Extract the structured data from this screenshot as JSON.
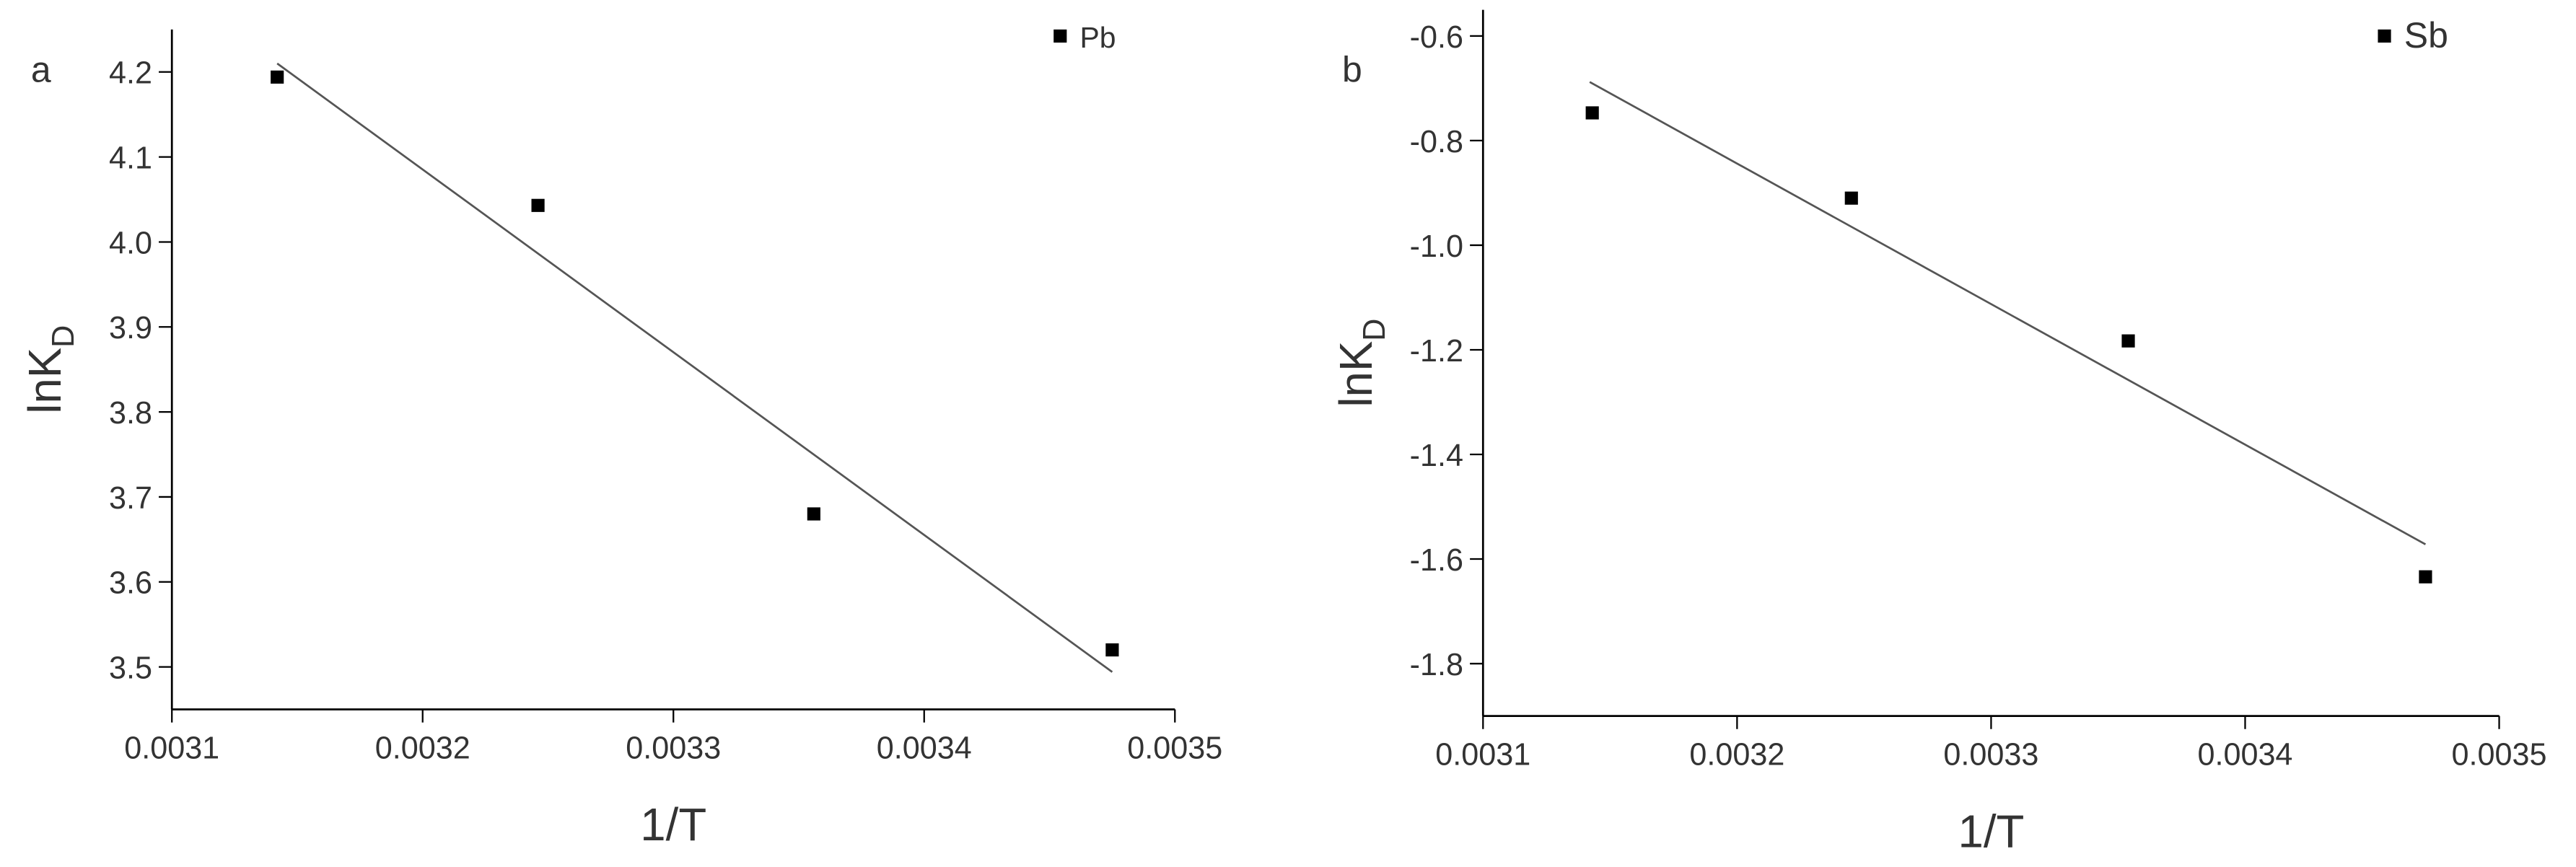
{
  "chart_data": [
    {
      "type": "scatter",
      "panel": "a",
      "xlabel": "1/T",
      "ylabel": "lnK",
      "ylabel_sub": "D",
      "xlim": [
        0.0031,
        0.0035
      ],
      "xticks": [
        0.0031,
        0.0032,
        0.0033,
        0.0034,
        0.0035
      ],
      "ylim": [
        3.45,
        4.25
      ],
      "yticks": [
        {
          "value": 3.5,
          "label": "3.5"
        },
        3.6,
        3.7,
        3.8,
        3.9,
        {
          "value": 4,
          "label": "4.0"
        },
        4.1,
        4.2
      ],
      "series": [
        {
          "name": "Pb",
          "color": "#000000",
          "x": [
            0.003142,
            0.003246,
            0.003356,
            0.003475
          ],
          "values": [
            4.194,
            4.043,
            3.68,
            3.52
          ]
        }
      ],
      "fit": {
        "color": "#555555",
        "x": [
          0.003142,
          0.003475
        ],
        "values": [
          4.21,
          3.494
        ]
      }
    },
    {
      "type": "scatter",
      "panel": "b",
      "xlabel": "1/T",
      "ylabel": "lnK",
      "ylabel_sub": "D",
      "xlim": [
        0.0031,
        0.0035
      ],
      "xticks": [
        0.0031,
        0.0032,
        0.0033,
        0.0034,
        0.0035
      ],
      "ylim": [
        -1.9,
        -0.55
      ],
      "yticks": [
        -1.8,
        -1.6,
        -1.4,
        -1.2,
        {
          "value": -1,
          "label": "-1.0"
        },
        -0.8,
        -0.6
      ],
      "series": [
        {
          "name": "Sb",
          "color": "#000000",
          "x": [
            0.003143,
            0.003245,
            0.003354,
            0.003471
          ],
          "values": [
            -0.747,
            -0.91,
            -1.183,
            -1.634
          ]
        }
      ],
      "fit": {
        "color": "#555555",
        "x": [
          0.003142,
          0.003471
        ],
        "values": [
          -0.688,
          -1.572
        ]
      }
    }
  ]
}
